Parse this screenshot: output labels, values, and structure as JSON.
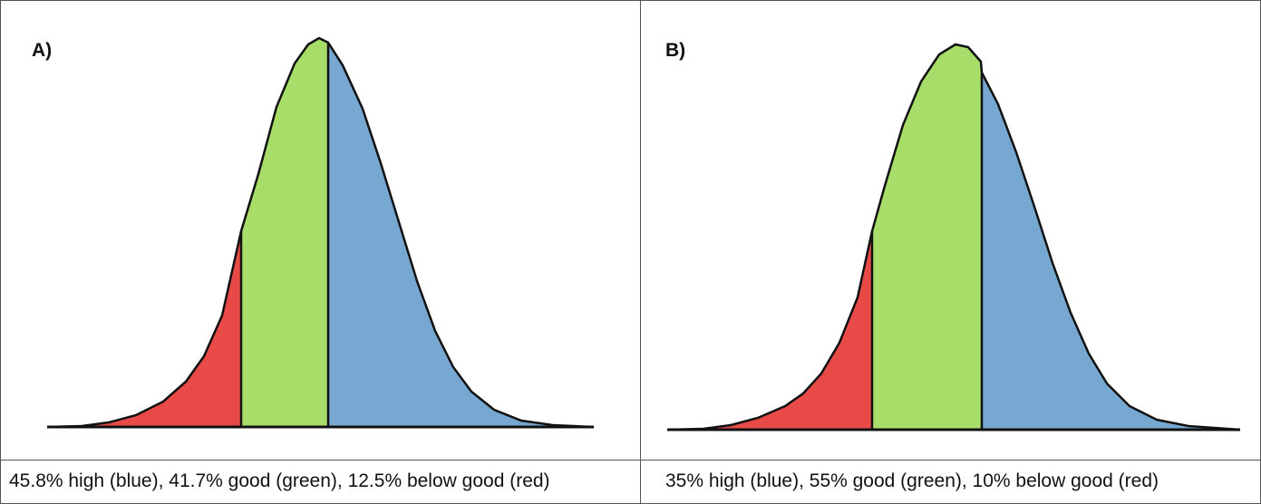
{
  "panels": [
    {
      "label": "A)",
      "caption": "45.8% high (blue), 41.7% good (green), 12.5% below good (red)",
      "segments": [
        {
          "name": "below good",
          "color": "#e84a47"
        },
        {
          "name": "good",
          "color": "#a9dd6a"
        },
        {
          "name": "high",
          "color": "#77a8d2"
        }
      ],
      "shares": {
        "high": 45.8,
        "good": 41.7,
        "below_good": 12.5
      }
    },
    {
      "label": "B)",
      "caption": "35% high (blue), 55% good (green), 10% below good (red)",
      "segments": [
        {
          "name": "below good",
          "color": "#e84a47"
        },
        {
          "name": "good",
          "color": "#a9dd6a"
        },
        {
          "name": "high",
          "color": "#77a8d2"
        }
      ],
      "shares": {
        "high": 35,
        "good": 55,
        "below_good": 10
      }
    }
  ],
  "colors": {
    "red": "#e84a47",
    "green": "#a9dd6a",
    "blue": "#77a8d2",
    "outline": "#111111",
    "border": "#555555"
  }
}
